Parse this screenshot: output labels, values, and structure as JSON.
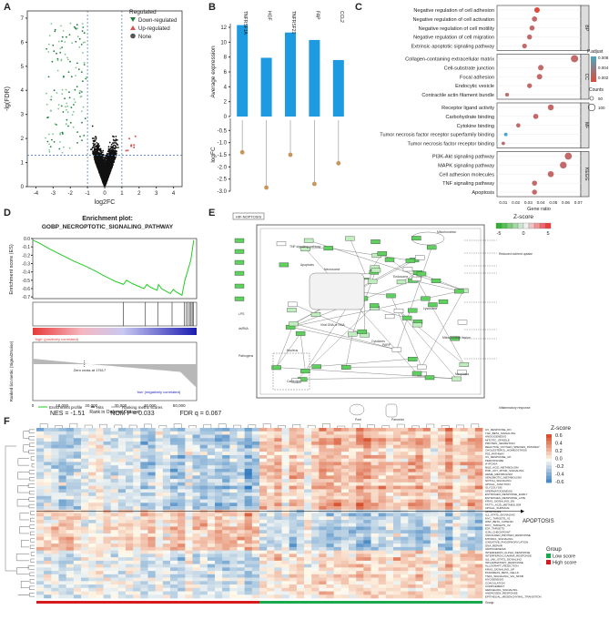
{
  "figure": {
    "panel_labels": [
      "A",
      "B",
      "C",
      "D",
      "E",
      "F"
    ]
  },
  "colors": {
    "down": "#1f7f3e",
    "down_light": "#7fc48f",
    "up": "#d9534f",
    "none": "#111111",
    "bar": "#1e9be0",
    "lollipop": "#c8955c",
    "enrich_line": "#22cc22",
    "low_score": "#1aa84d",
    "high_score": "#d7191c"
  },
  "panel_a": {
    "xlabel": "log2FC",
    "ylabel": "-lg(FDR)",
    "xticks": [
      "-4",
      "-3",
      "-2",
      "-1",
      "0",
      "1",
      "2",
      "3",
      "4"
    ],
    "yticks": [
      "0",
      "1",
      "2",
      "3",
      "4",
      "5",
      "6",
      "7"
    ],
    "legend_title": "Regulated",
    "legend_items": [
      "Down-regulated",
      "Up-regulated",
      "None"
    ]
  },
  "chart_data": [
    {
      "type": "bar",
      "panel": "B",
      "categories": [
        "TNFRSF1A",
        "HGF",
        "TNFRSF21",
        "FAP",
        "CCL2"
      ],
      "values": [
        12.3,
        7.9,
        11.3,
        10.3,
        7.6
      ],
      "ylabel": "Average expression",
      "ylim": [
        0,
        12
      ],
      "yticks": [
        0,
        2,
        4,
        6,
        8,
        10,
        12
      ]
    },
    {
      "type": "lollipop",
      "panel": "B-lower",
      "categories": [
        "TNFRSF1A",
        "HGF",
        "TNFRSF21",
        "FAP",
        "CCL2"
      ],
      "values": [
        -1.4,
        -2.85,
        -1.5,
        -2.7,
        -1.85
      ],
      "ylabel": "logFC",
      "ylim": [
        -3.0,
        0
      ],
      "yticks": [
        "-0.5",
        "-1.0",
        "-1.5",
        "-2.0",
        "-2.5",
        "-3.0"
      ]
    },
    {
      "type": "scatter",
      "panel": "C",
      "xlabel": "Gene ratio",
      "xticks": [
        "0.01",
        "0.02",
        "0.03",
        "0.04",
        "0.05",
        "0.06",
        "0.07"
      ],
      "groups": [
        {
          "name": "BP",
          "terms": [
            {
              "term": "Negative regulation of cell adhesion",
              "ratio": 0.037,
              "p": 0.004,
              "count": 60
            },
            {
              "term": "Negative regulation of cell activation",
              "ratio": 0.035,
              "p": 0.005,
              "count": 55
            },
            {
              "term": "Negative regulation of cell motility",
              "ratio": 0.033,
              "p": 0.005,
              "count": 52
            },
            {
              "term": "Negative regulation of cell migration",
              "ratio": 0.031,
              "p": 0.005,
              "count": 50
            },
            {
              "term": "Extrinsic apoptotic signaling pathway",
              "ratio": 0.027,
              "p": 0.005,
              "count": 45
            }
          ]
        },
        {
          "name": "CC",
          "terms": [
            {
              "term": "Collagen-containing extracellular matrix",
              "ratio": 0.067,
              "p": 0.005,
              "count": 100
            },
            {
              "term": "Cell-substrate junction",
              "ratio": 0.04,
              "p": 0.005,
              "count": 62
            },
            {
              "term": "Focal adhesion",
              "ratio": 0.039,
              "p": 0.005,
              "count": 60
            },
            {
              "term": "Endocytic vesicle",
              "ratio": 0.031,
              "p": 0.005,
              "count": 48
            },
            {
              "term": "Contractile actin filament bundle",
              "ratio": 0.013,
              "p": 0.005,
              "count": 22
            }
          ]
        },
        {
          "name": "MF",
          "terms": [
            {
              "term": "Receptor ligand activity",
              "ratio": 0.048,
              "p": 0.005,
              "count": 70
            },
            {
              "term": "Carbohydrate binding",
              "ratio": 0.036,
              "p": 0.005,
              "count": 55
            },
            {
              "term": "Cytokine binding",
              "ratio": 0.022,
              "p": 0.005,
              "count": 35
            },
            {
              "term": "Tumor necrosis factor receptor superfamily binding",
              "ratio": 0.012,
              "p": 0.009,
              "count": 18
            },
            {
              "term": "Tumor necrosis factor receptor binding",
              "ratio": 0.01,
              "p": 0.005,
              "count": 15
            }
          ]
        },
        {
          "name": "KEGG",
          "terms": [
            {
              "term": "PI3K-Akt signaling pathway",
              "ratio": 0.062,
              "p": 0.005,
              "count": 95
            },
            {
              "term": "MAPK signaling pathway",
              "ratio": 0.058,
              "p": 0.005,
              "count": 88
            },
            {
              "term": "Cell adhesion molecules",
              "ratio": 0.048,
              "p": 0.005,
              "count": 72
            },
            {
              "term": "TNF signaling pathway",
              "ratio": 0.035,
              "p": 0.005,
              "count": 52
            },
            {
              "term": "Apoptosis",
              "ratio": 0.035,
              "p": 0.005,
              "count": 50
            }
          ]
        }
      ],
      "legend": {
        "color_title": "P.adjust",
        "color_ticks": [
          "0.008",
          "0.004",
          "0.002"
        ],
        "size_title": "Counts",
        "size_values": [
          "50",
          "100"
        ]
      }
    },
    {
      "type": "line",
      "panel": "D",
      "title_line1": "Enrichment plot:",
      "title_line2": "GOBP_NECROPTOTIC_SIGNALING_PATHWAY",
      "ylabel": "Enrichment score (ES)",
      "ylabel2": "Ranked list metric (Signal2Noise)",
      "xlabel": "Rank in Ordered Dataset",
      "yticks": [
        "0.0",
        "-0.1",
        "-0.2",
        "-0.3",
        "-0.4",
        "-0.5",
        "-0.6",
        "-0.7"
      ],
      "xticks": [
        "0",
        "10,000",
        "20,000",
        "30,000",
        "40,000",
        "50,000"
      ],
      "es_curve": [
        [
          0,
          -0.02
        ],
        [
          2000,
          -0.05
        ],
        [
          6000,
          -0.13
        ],
        [
          10000,
          -0.2
        ],
        [
          14000,
          -0.27
        ],
        [
          18000,
          -0.33
        ],
        [
          22000,
          -0.4
        ],
        [
          24000,
          -0.44
        ],
        [
          28000,
          -0.51
        ],
        [
          31000,
          -0.55
        ],
        [
          32000,
          -0.5
        ],
        [
          34000,
          -0.54
        ],
        [
          38000,
          -0.6
        ],
        [
          39000,
          -0.55
        ],
        [
          40000,
          -0.58
        ],
        [
          42500,
          -0.62
        ],
        [
          43000,
          -0.55
        ],
        [
          44000,
          -0.6
        ],
        [
          45500,
          -0.63
        ],
        [
          47000,
          -0.66
        ],
        [
          48000,
          -0.61
        ],
        [
          49000,
          -0.64
        ],
        [
          51000,
          -0.68
        ],
        [
          52000,
          -0.5
        ],
        [
          53000,
          -0.38
        ],
        [
          54000,
          -0.26
        ],
        [
          55000,
          -0.02
        ]
      ],
      "hits": [
        31000,
        38500,
        42700,
        47600,
        51800,
        52500,
        53100,
        53600,
        54100,
        54500,
        54900
      ],
      "pos_label": "'high' (positively correlated)",
      "neg_label": "'low' (negatively correlated)",
      "zero_cross": "Zero cross at 17617",
      "legend": [
        "Enrichment profile",
        "Hits",
        "Ranking metric scores"
      ],
      "nes": "NES = -1.51",
      "nom_p": "NOM P = 0.033",
      "fdr_q": "FDR q = 0.067"
    },
    {
      "type": "heatmap",
      "panel": "F",
      "legend_title": "Z-score",
      "legend_ticks": [
        "0.6",
        "0.4",
        "0.2",
        "0.0",
        "-0.2",
        "-0.4",
        "-0.6"
      ],
      "group_title": "Group",
      "groups": [
        "Low score",
        "High score"
      ],
      "bottom_label": "Group",
      "highlight_row": "APOPTOSIS",
      "rows": [
        "UV_RESPONSE_DN",
        "TGF_BETA_SIGNALING",
        "ANGIOGENESIS",
        "MITOTIC_SPINDLE",
        "PROTEIN_SECRETION",
        "REACTIVE_OXYGEN_SPECIES_PATHWAY",
        "CHOLESTEROL_HOMEOSTASIS",
        "P53_PATHWAY",
        "UV_RESPONSE_UP",
        "PEROXISOME",
        "HYPOXIA",
        "BILE_ACID_METABOLISM",
        "PI3K_AKT_MTOR_SIGNALING",
        "HEME_METABOLISM",
        "XENOBIOTIC_METABOLISM",
        "NOTCH_SIGNALING",
        "APICAL_JUNCTION",
        "GLYCOLYSIS",
        "SPERMATOGENESIS",
        "ESTROGEN_RESPONSE_EARLY",
        "ESTROGEN_RESPONSE_LATE",
        "KRAS_SIGNALING_DN",
        "FATTY_ACID_METABOLISM",
        "APICAL_SURFACE",
        "APOPTOSIS",
        "IL2_STAT5_SIGNALING",
        "MYC_TARGETS_V1",
        "WNT_BETA_CATENIN",
        "MYC_TARGETS_V2",
        "E2F_TARGETS",
        "G2M_CHECKPOINT",
        "UNFOLDED_PROTEIN_RESPONSE",
        "MTORC1_SIGNALING",
        "OXIDATIVE_PHOSPHORYLATION",
        "DNA_REPAIR",
        "ADIPOGENESIS",
        "INTERFERON_ALPHA_RESPONSE",
        "INTERFERON_GAMMA_RESPONSE",
        "IL6_JAK_STAT3_SIGNALING",
        "INFLAMMATORY_RESPONSE",
        "ALLOGRAFT_REJECTION",
        "KRAS_SIGNALING_UP",
        "PANCREAS_BETA_CELLS",
        "TNFA_SIGNALING_VIA_NFKB",
        "MYOGENESIS",
        "COAGULATION",
        "COMPLEMENT",
        "HEDGEHOG_SIGNALING",
        "ANDROGEN_RESPONSE",
        "EPITHELIAL_MESENCHYMAL_TRANSITION"
      ]
    }
  ],
  "panel_e": {
    "badge": "HIF-NOPTOSIS",
    "legend_title": "Z-score",
    "legend_ticks": [
      "-5",
      "0",
      "5"
    ],
    "labels": [
      "TNF signaling pathway",
      "Apoptosis",
      "Necrosome",
      "Mitochondrion",
      "Lysosome",
      "Nucleus",
      "Endosome",
      "Pore",
      "Pannexin",
      "Mitochondrial fission",
      "Reduced nutrient uptake",
      "Inflammatory response",
      "Neoplasia",
      "PARP",
      "LPS",
      "dsRNA",
      "Pathogens",
      "Cardiolipin",
      "Cytokines",
      "Viral DNA or RNA"
    ]
  },
  "apoptosis_label": "APOPTOSIS"
}
